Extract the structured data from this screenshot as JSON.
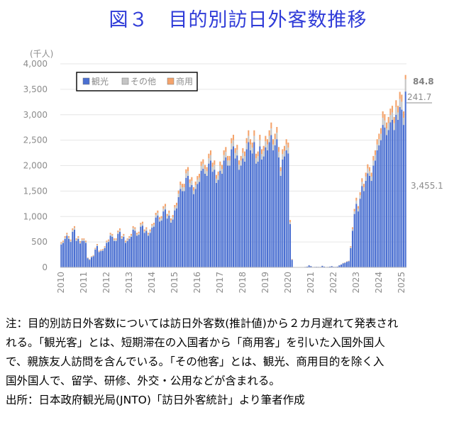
{
  "page": {
    "title": "図３　目的別訪日外客数推移",
    "notes": [
      "注：目的別訪日外客数については訪日外客数(推計値)から２カ月遅れて発表され",
      "れる。「観光客」とは、短期滞在の入国者から「商用客」を引いた入国外国人",
      "で、親族友人訪問を含んでいる。「その他客」とは、観光、商用目的を除く入",
      "国外国人で、留学、研修、外交・公用などが含まれる。",
      "出所：日本政府観光局(JNTO)「訪日外客統計」より筆者作成"
    ]
  },
  "chart_data": {
    "type": "bar",
    "stacked": true,
    "unit_label": "(千人)",
    "ylim": [
      0,
      4000
    ],
    "y_ticks": [
      "0",
      "500",
      "1,000",
      "1,500",
      "2,000",
      "2,500",
      "3,000",
      "3,500",
      "4,000"
    ],
    "x_ticks": [
      "2010",
      "2011",
      "2012",
      "2013",
      "2014",
      "2015",
      "2016",
      "2017",
      "2018",
      "2019",
      "2020",
      "2021",
      "2022",
      "2023",
      "2024",
      "2025"
    ],
    "x_start": "2010-01",
    "legend": {
      "position": "top-left",
      "entries": [
        "観光",
        "その他",
        "商用"
      ]
    },
    "series_colors": {
      "tourism": "#4a6fd1",
      "other": "#c4c4c4",
      "business": "#f4a36b"
    },
    "annual_tourism": [
      [
        450,
        480,
        560,
        620,
        560,
        500,
        700,
        740,
        520,
        560,
        470,
        520
      ],
      [
        520,
        480,
        180,
        150,
        200,
        220,
        350,
        420,
        300,
        320,
        330,
        380
      ],
      [
        480,
        500,
        620,
        600,
        520,
        520,
        660,
        700,
        560,
        600,
        480,
        520
      ],
      [
        560,
        600,
        740,
        720,
        620,
        640,
        800,
        820,
        680,
        720,
        620,
        680
      ],
      [
        780,
        800,
        980,
        1020,
        900,
        920,
        1100,
        1140,
        960,
        1020,
        880,
        940
      ],
      [
        1120,
        1160,
        1380,
        1540,
        1500,
        1500,
        1760,
        1800,
        1580,
        1620,
        1440,
        1540
      ],
      [
        1640,
        1680,
        1900,
        1940,
        1840,
        1800,
        2040,
        2100,
        1880,
        1920,
        1660,
        1720
      ],
      [
        1900,
        1840,
        2100,
        2160,
        2000,
        2000,
        2320,
        2380,
        2140,
        2200,
        1920,
        2000
      ],
      [
        2140,
        2080,
        2320,
        2460,
        2300,
        2240,
        2460,
        2040,
        2080,
        2380,
        2120,
        2180
      ],
      [
        2360,
        2300,
        2460,
        2600,
        2300,
        2400,
        2520,
        2160,
        1800,
        2120,
        2180,
        2300
      ],
      [
        2240,
        850,
        150,
        5,
        2,
        3,
        4,
        5,
        6,
        10,
        15,
        40
      ],
      [
        25,
        8,
        10,
        12,
        10,
        10,
        30,
        15,
        8,
        10,
        15,
        25
      ],
      [
        12,
        10,
        15,
        40,
        55,
        80,
        90,
        110,
        120,
        380,
        720,
        1050
      ],
      [
        1250,
        1100,
        1350,
        1600,
        1500,
        1700,
        1850,
        1800,
        1700,
        2000,
        2100,
        2300
      ],
      [
        2400,
        2500,
        2800,
        2750,
        2600,
        2700,
        2850,
        2900,
        2700,
        3000,
        2900,
        3150
      ],
      [
        3100,
        2800,
        3455.1
      ]
    ],
    "other_ratio": 0.05,
    "business_ratio": 0.045,
    "latest_month": {
      "tourism": 3455.1,
      "other": 241.7,
      "business": 84.8
    },
    "annotations": {
      "business": "84.8",
      "other": "241.7",
      "tourism": "3,455.1"
    }
  }
}
